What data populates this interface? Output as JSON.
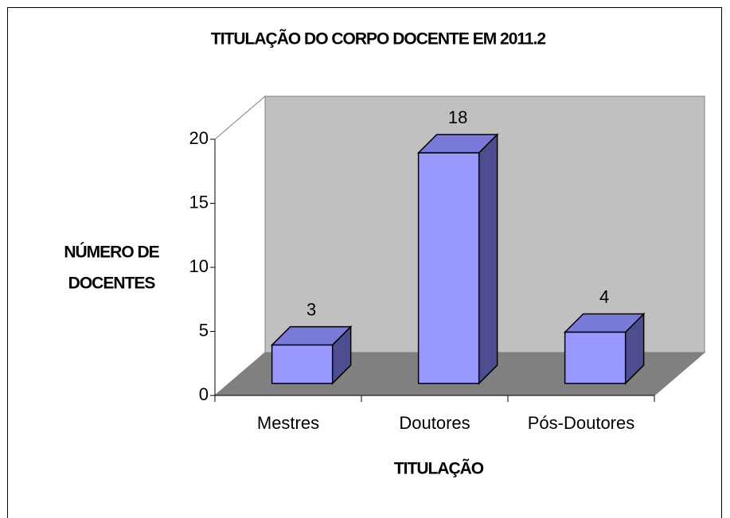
{
  "chart_data": {
    "type": "bar3d",
    "title": "TITULAÇÃO DO CORPO DOCENTE EM 2011.2",
    "ylabel": [
      "NÚMERO DE",
      "DOCENTES"
    ],
    "xlabel": "TITULAÇÃO",
    "categories": [
      "Mestres",
      "Doutores",
      "Pós-Doutores"
    ],
    "values": [
      3,
      18,
      4
    ],
    "color": "#9999ff",
    "ylim": [
      0,
      20
    ],
    "yticks": [
      0,
      5,
      10,
      15,
      20
    ],
    "data_labels": true
  }
}
